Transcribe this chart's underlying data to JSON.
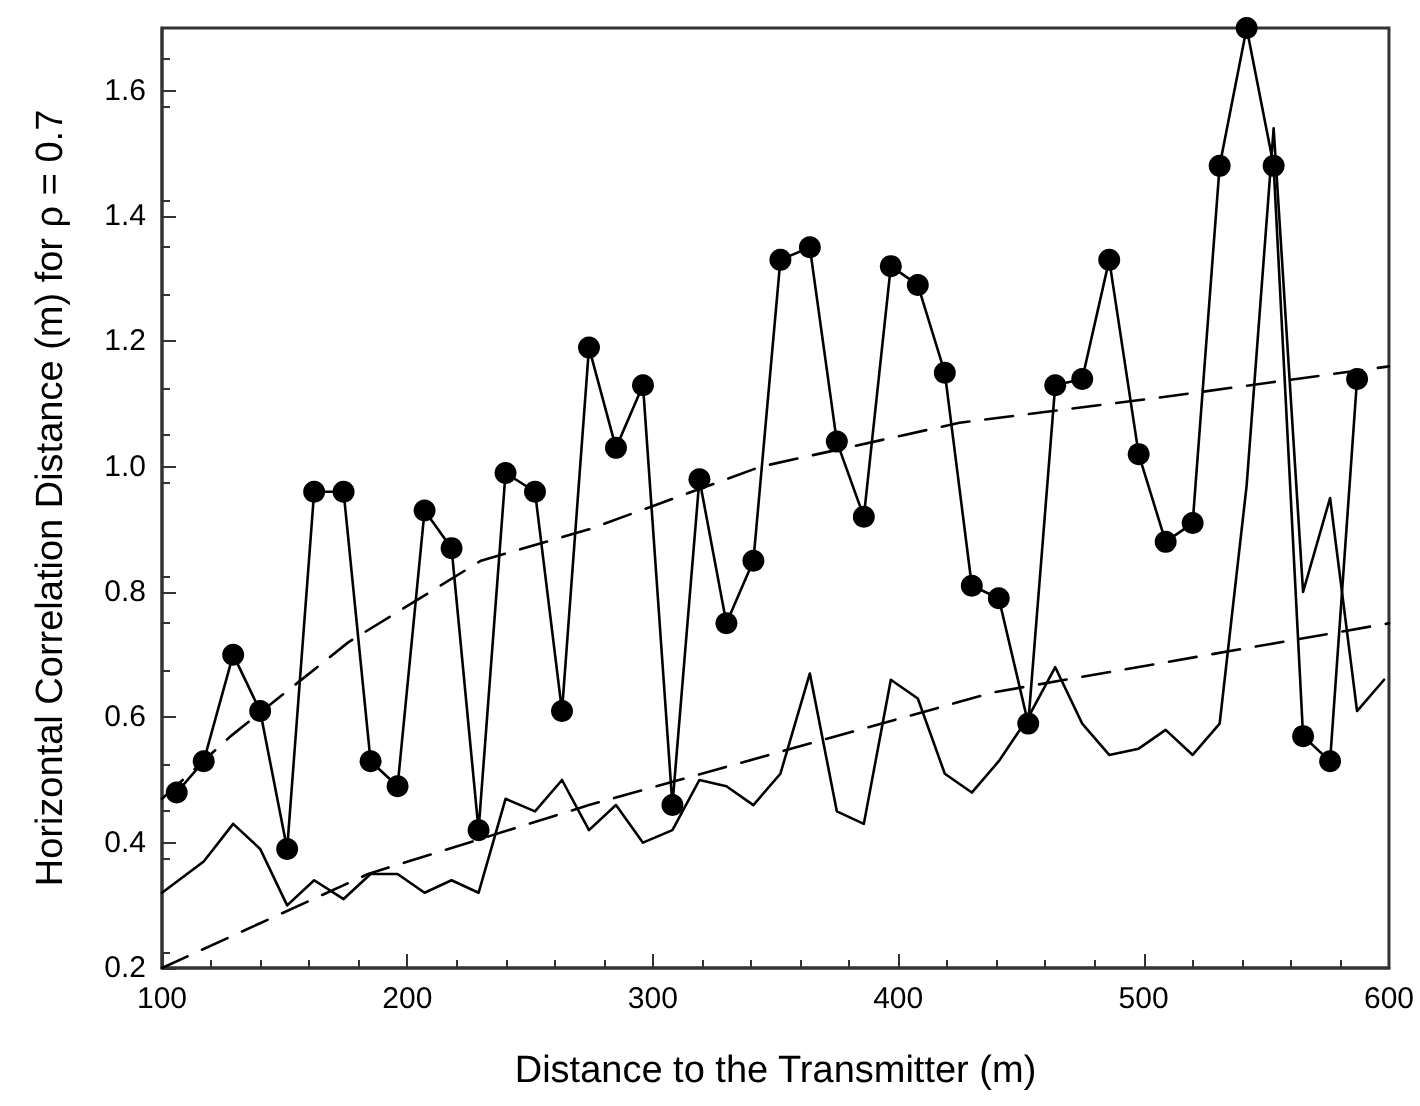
{
  "chart_data": {
    "type": "line",
    "xlabel": "Distance to the Transmitter (m)",
    "ylabel": "Horizontal Correlation Distance (m) for ρ = 0.7",
    "xlim": [
      100,
      600
    ],
    "xticks": [
      100,
      200,
      300,
      400,
      500,
      600
    ],
    "ylim": [
      0.2,
      1.7
    ],
    "yticks": [
      0.2,
      0.4,
      0.6,
      0.8,
      {
        "value": 1.0,
        "label": "1.0"
      },
      1.2,
      1.4,
      1.6
    ],
    "grid": false,
    "series": [
      {
        "color": "#000000",
        "marker": "circle",
        "line_style": "solid",
        "x": [
          106,
          117,
          129,
          140,
          151,
          162,
          174,
          185,
          196,
          207,
          218,
          229,
          240,
          252,
          263,
          274,
          285,
          296,
          308,
          319,
          330,
          341,
          352,
          364,
          375,
          386,
          397,
          408,
          419,
          430,
          441,
          453,
          464,
          475,
          486,
          498,
          509,
          520,
          531,
          542,
          553,
          565,
          576,
          587
        ],
        "values": [
          0.48,
          0.53,
          0.7,
          0.61,
          0.39,
          0.96,
          0.96,
          0.53,
          0.49,
          0.93,
          0.87,
          0.42,
          0.99,
          0.96,
          0.61,
          1.19,
          1.03,
          1.13,
          0.46,
          0.98,
          0.75,
          0.85,
          1.33,
          1.35,
          1.04,
          0.92,
          1.32,
          1.29,
          1.15,
          0.81,
          0.79,
          0.59,
          1.13,
          1.14,
          1.33,
          1.02,
          0.88,
          0.91,
          1.48,
          1.7,
          1.48,
          0.57,
          0.53,
          1.14
        ]
      },
      {
        "color": "#000000",
        "marker": "none",
        "line_style": "solid",
        "x": [
          100,
          117,
          129,
          140,
          151,
          162,
          174,
          185,
          196,
          207,
          218,
          229,
          240,
          252,
          263,
          274,
          285,
          296,
          308,
          319,
          330,
          341,
          352,
          364,
          375,
          386,
          397,
          408,
          419,
          430,
          441,
          453,
          464,
          475,
          486,
          498,
          509,
          520,
          531,
          542,
          553,
          565,
          576,
          587,
          598
        ],
        "values": [
          0.32,
          0.37,
          0.43,
          0.39,
          0.3,
          0.34,
          0.31,
          0.35,
          0.35,
          0.32,
          0.34,
          0.32,
          0.47,
          0.45,
          0.5,
          0.42,
          0.46,
          0.4,
          0.42,
          0.5,
          0.49,
          0.46,
          0.51,
          0.67,
          0.45,
          0.43,
          0.66,
          0.63,
          0.51,
          0.48,
          0.53,
          0.6,
          0.68,
          0.59,
          0.54,
          0.55,
          0.58,
          0.54,
          0.59,
          0.97,
          1.54,
          0.8,
          0.95,
          0.61,
          0.66
        ]
      },
      {
        "color": "#000000",
        "marker": "none",
        "line_style": "dashed",
        "x": [
          100,
          128,
          176,
          230,
          274,
          344,
          425,
          506,
          600
        ],
        "values": [
          0.47,
          0.57,
          0.72,
          0.85,
          0.9,
          1.0,
          1.07,
          1.11,
          1.16
        ]
      },
      {
        "color": "#000000",
        "marker": "none",
        "line_style": "dashed",
        "x": [
          100,
          184,
          274,
          439,
          600
        ],
        "values": [
          0.2,
          0.35,
          0.46,
          0.64,
          0.75
        ]
      }
    ]
  }
}
